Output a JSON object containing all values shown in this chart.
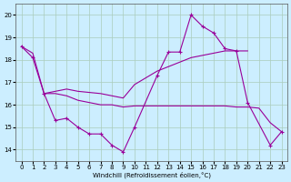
{
  "xlabel": "Windchill (Refroidissement éolien,°C)",
  "background_color": "#cceeff",
  "grid_color": "#aaccbb",
  "line_color": "#990099",
  "xlim": [
    -0.5,
    23.5
  ],
  "ylim": [
    13.5,
    20.5
  ],
  "yticks": [
    14,
    15,
    16,
    17,
    18,
    19,
    20
  ],
  "xticks": [
    0,
    1,
    2,
    3,
    4,
    5,
    6,
    7,
    8,
    9,
    10,
    11,
    12,
    13,
    14,
    15,
    16,
    17,
    18,
    19,
    20,
    21,
    22,
    23
  ],
  "series1_x": [
    0,
    1,
    2,
    3,
    4,
    5,
    6,
    7,
    8,
    9,
    10,
    12,
    13,
    14,
    15,
    16,
    17,
    18,
    19,
    20,
    22,
    23
  ],
  "series1_y": [
    18.6,
    18.1,
    16.5,
    15.3,
    15.4,
    15.0,
    14.7,
    14.7,
    14.2,
    13.9,
    15.0,
    17.3,
    18.35,
    18.35,
    20.0,
    19.5,
    19.2,
    18.5,
    18.4,
    16.1,
    14.2,
    14.8
  ],
  "series2_x": [
    2,
    3,
    4,
    5,
    6,
    7,
    8,
    9,
    10,
    11,
    12,
    13,
    14,
    15,
    16,
    17,
    18,
    19,
    20,
    21,
    22,
    23
  ],
  "series2_y": [
    16.5,
    16.5,
    16.4,
    16.2,
    16.1,
    16.0,
    16.0,
    15.9,
    15.95,
    15.95,
    15.95,
    15.95,
    15.95,
    15.95,
    15.95,
    15.95,
    15.95,
    15.9,
    15.9,
    15.85,
    15.2,
    14.8
  ],
  "series3_x": [
    0,
    1,
    2,
    3,
    4,
    5,
    6,
    7,
    8,
    9,
    10,
    11,
    12,
    13,
    14,
    15,
    16,
    17,
    18,
    19,
    20
  ],
  "series3_y": [
    18.6,
    18.3,
    16.5,
    16.6,
    16.7,
    16.6,
    16.55,
    16.5,
    16.4,
    16.3,
    16.9,
    17.2,
    17.5,
    17.7,
    17.9,
    18.1,
    18.2,
    18.3,
    18.4,
    18.4,
    18.4
  ]
}
